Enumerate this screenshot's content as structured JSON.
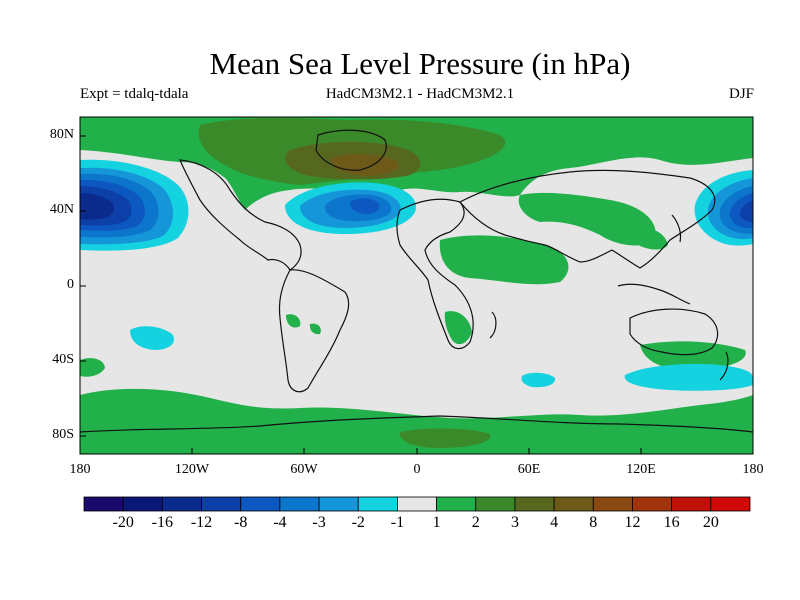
{
  "title": "Mean Sea Level Pressure (in hPa)",
  "experiment": "Expt = tdalq-tdala",
  "models": "HadCM3M2.1 - HadCM3M2.1",
  "season": "DJF",
  "lat_labels": [
    "80N",
    "40N",
    "0",
    "40S",
    "80S"
  ],
  "lon_labels": [
    "180",
    "120W",
    "60W",
    "0",
    "60E",
    "120E",
    "180"
  ],
  "colorbar": {
    "colors": [
      "#1a0a6e",
      "#0a1878",
      "#0a2a8c",
      "#0c3fa8",
      "#0c58c0",
      "#0c76cc",
      "#1496d8",
      "#14d2e0",
      "#e6e6e6",
      "#22b04a",
      "#3a8a2a",
      "#566820",
      "#6e5a18",
      "#8a4812",
      "#a0320c",
      "#c0100a",
      "#d00a0a"
    ],
    "labels": [
      "-20",
      "-16",
      "-12",
      "-8",
      "-4",
      "-3",
      "-2",
      "-1",
      "1",
      "2",
      "3",
      "4",
      "8",
      "12",
      "16",
      "20"
    ]
  },
  "fill_colors": {
    "neutral": "#e6e6e6",
    "pos1": "#22b04a",
    "pos2": "#3a8a2a",
    "pos3": "#566820",
    "pos4": "#6e5a18",
    "neg1": "#14d2e0",
    "neg2": "#1496d8",
    "neg3": "#0c76cc",
    "neg4": "#0c58c0",
    "neg5": "#0c3fa8",
    "neg6": "#0a2a8c",
    "coast": "#111111"
  }
}
